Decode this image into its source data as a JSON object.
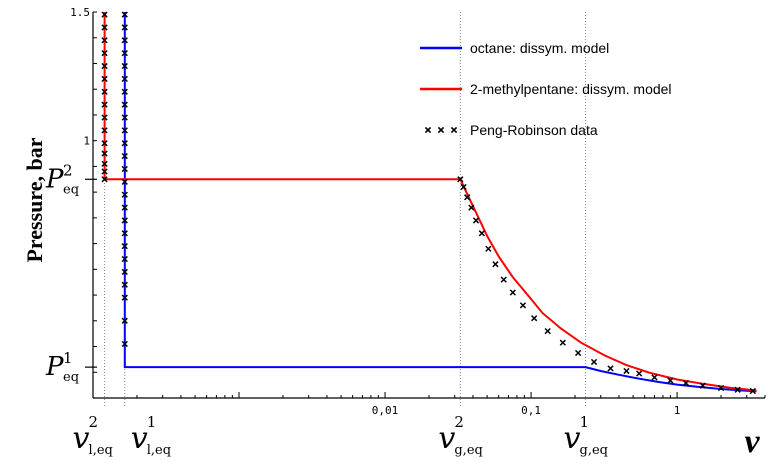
{
  "chart_data": {
    "type": "line",
    "title": "",
    "ylabel": "Pressure, bar",
    "xlabel": "v",
    "x_scale": "log",
    "x_tick_labels": [
      "0,01",
      "0,1",
      "1"
    ],
    "x_ticks": [
      0.01,
      0.1,
      1
    ],
    "y_tick_labels": [
      "1.5",
      "1"
    ],
    "y_ticks": [
      1.5,
      1.0
    ],
    "special_y_labels": [
      {
        "base": "P",
        "sub": "eq",
        "sup": "2",
        "value": 0.85
      },
      {
        "base": "P",
        "sub": "eq",
        "sup": "1",
        "value": 0.12
      }
    ],
    "special_x_labels": [
      {
        "base": "v",
        "sub": "l,eq",
        "sup": "2"
      },
      {
        "base": "v",
        "sub": "l,eq",
        "sup": "1"
      },
      {
        "base": "v",
        "sub": "g,eq",
        "sup": "2"
      },
      {
        "base": "v",
        "sub": "g,eq",
        "sup": "1"
      }
    ],
    "legend_position": "top-right",
    "series": [
      {
        "name": "octane: dissym. model",
        "color": "#0000ff",
        "style": "line",
        "x": [
          0.000165,
          0.000165,
          0.000165,
          0.236,
          0.3,
          0.4,
          0.55,
          0.75,
          1.0,
          1.4,
          2.0,
          2.8,
          3.5
        ],
        "y": [
          1.5,
          0.85,
          0.12,
          0.12,
          0.105,
          0.09,
          0.075,
          0.062,
          0.052,
          0.043,
          0.035,
          0.029,
          0.026
        ]
      },
      {
        "name": "2-methylpentane: dissym. model",
        "color": "#ff0000",
        "style": "line",
        "x": [
          0.00012,
          0.00012,
          0.00012,
          0.0328,
          0.036,
          0.042,
          0.05,
          0.06,
          0.075,
          0.095,
          0.12,
          0.16,
          0.22,
          0.32,
          0.45,
          0.65,
          1.0,
          1.5,
          2.3,
          3.5
        ],
        "y": [
          1.5,
          0.85,
          0.85,
          0.85,
          0.8,
          0.72,
          0.63,
          0.55,
          0.47,
          0.4,
          0.33,
          0.27,
          0.215,
          0.165,
          0.128,
          0.098,
          0.072,
          0.055,
          0.04,
          0.029
        ]
      },
      {
        "name": "Peng-Robinson data",
        "color": "#000000",
        "style": "markers",
        "marker": "x",
        "x": [
          0.00012,
          0.00012,
          0.00012,
          0.00012,
          0.00012,
          0.00012,
          0.00012,
          0.00012,
          0.00012,
          0.00012,
          0.00012,
          0.00012,
          0.00012,
          0.00012,
          0.00012,
          0.000165,
          0.000165,
          0.000165,
          0.000165,
          0.000165,
          0.000165,
          0.000165,
          0.000165,
          0.000165,
          0.000165,
          0.000165,
          0.000165,
          0.000165,
          0.000165,
          0.000165,
          0.000165,
          0.000165,
          0.000165,
          0.000165,
          0.000165,
          0.000165,
          0.000165,
          0.000165,
          0.000165,
          0.000165,
          0.0328,
          0.0345,
          0.0365,
          0.039,
          0.042,
          0.046,
          0.051,
          0.057,
          0.065,
          0.075,
          0.088,
          0.105,
          0.13,
          0.165,
          0.21,
          0.27,
          0.35,
          0.45,
          0.55,
          0.7,
          0.9,
          1.15,
          1.5,
          2.0,
          2.6,
          3.3
        ],
        "y": [
          1.49,
          1.44,
          1.39,
          1.34,
          1.29,
          1.24,
          1.19,
          1.14,
          1.09,
          1.04,
          0.99,
          0.95,
          0.91,
          0.88,
          0.85,
          1.49,
          1.44,
          1.39,
          1.34,
          1.29,
          1.24,
          1.19,
          1.14,
          1.09,
          1.04,
          0.99,
          0.94,
          0.89,
          0.84,
          0.79,
          0.74,
          0.69,
          0.64,
          0.59,
          0.54,
          0.49,
          0.44,
          0.39,
          0.3,
          0.21,
          0.85,
          0.82,
          0.78,
          0.74,
          0.69,
          0.64,
          0.58,
          0.52,
          0.46,
          0.41,
          0.36,
          0.31,
          0.26,
          0.215,
          0.175,
          0.14,
          0.115,
          0.105,
          0.095,
          0.08,
          0.068,
          0.058,
          0.048,
          0.039,
          0.032,
          0.027
        ]
      }
    ],
    "reference_lines": [
      {
        "axis": "x",
        "value": 0.00012
      },
      {
        "axis": "x",
        "value": 0.000165
      },
      {
        "axis": "x",
        "value": 0.0328
      },
      {
        "axis": "x",
        "value": 0.236
      }
    ],
    "xlim": [
      0.0001,
      4.0
    ],
    "ylim": [
      0.0,
      1.5
    ]
  }
}
